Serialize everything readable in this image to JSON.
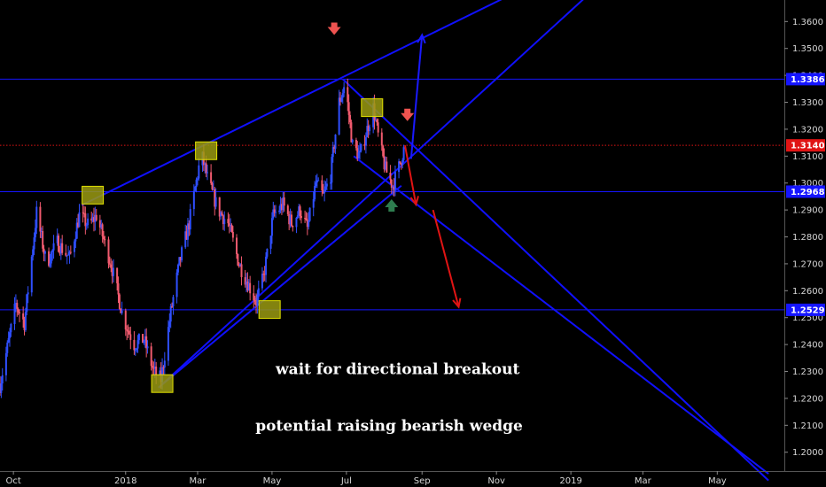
{
  "chart_data": {
    "type": "candlestick",
    "title": "",
    "xlabel": "",
    "ylabel": "",
    "ylim": [
      1.193,
      1.368
    ],
    "x_range": [
      "2017-09-20",
      "2019-06-25"
    ],
    "y_ticks": [
      1.2,
      1.21,
      1.22,
      1.23,
      1.24,
      1.25,
      1.26,
      1.27,
      1.28,
      1.29,
      1.3,
      1.31,
      1.32,
      1.33,
      1.34,
      1.35,
      1.36
    ],
    "y_tick_labels": [
      "1.2000",
      "1.2100",
      "1.2200",
      "1.2300",
      "1.2400",
      "1.2500",
      "1.2600",
      "1.2700",
      "1.2800",
      "1.2900",
      "1.3000",
      "1.3100",
      "1.3200",
      "1.3300",
      "1.3400",
      "1.3500",
      "1.3600"
    ],
    "x_ticks": [
      {
        "label": "Oct",
        "date": "2017-10-01"
      },
      {
        "label": "2018",
        "date": "2018-01-01"
      },
      {
        "label": "Mar",
        "date": "2018-03-01"
      },
      {
        "label": "May",
        "date": "2018-05-01"
      },
      {
        "label": "Jul",
        "date": "2018-07-01"
      },
      {
        "label": "Sep",
        "date": "2018-09-01"
      },
      {
        "label": "Nov",
        "date": "2018-11-01"
      },
      {
        "label": "2019",
        "date": "2019-01-01"
      },
      {
        "label": "Mar",
        "date": "2019-03-01"
      },
      {
        "label": "May",
        "date": "2019-05-01"
      }
    ],
    "price_path": [
      [
        "2017-09-20",
        1.225
      ],
      [
        "2017-10-03",
        1.255
      ],
      [
        "2017-10-10",
        1.248
      ],
      [
        "2017-10-20",
        1.289
      ],
      [
        "2017-10-28",
        1.27
      ],
      [
        "2017-11-06",
        1.278
      ],
      [
        "2017-11-16",
        1.272
      ],
      [
        "2017-11-24",
        1.288
      ],
      [
        "2017-12-02",
        1.284
      ],
      [
        "2017-12-08",
        1.288
      ],
      [
        "2017-12-20",
        1.27
      ],
      [
        "2017-12-30",
        1.25
      ],
      [
        "2018-01-08",
        1.24
      ],
      [
        "2018-01-16",
        1.242
      ],
      [
        "2018-01-24",
        1.23
      ],
      [
        "2018-01-30",
        1.227
      ],
      [
        "2018-02-07",
        1.252
      ],
      [
        "2018-02-14",
        1.27
      ],
      [
        "2018-02-22",
        1.285
      ],
      [
        "2018-03-04",
        1.311
      ],
      [
        "2018-03-10",
        1.3
      ],
      [
        "2018-03-18",
        1.29
      ],
      [
        "2018-03-26",
        1.285
      ],
      [
        "2018-04-04",
        1.27
      ],
      [
        "2018-04-12",
        1.262
      ],
      [
        "2018-04-18",
        1.256
      ],
      [
        "2018-04-24",
        1.265
      ],
      [
        "2018-05-02",
        1.288
      ],
      [
        "2018-05-10",
        1.292
      ],
      [
        "2018-05-17",
        1.285
      ],
      [
        "2018-05-24",
        1.29
      ],
      [
        "2018-05-30",
        1.283
      ],
      [
        "2018-06-06",
        1.3
      ],
      [
        "2018-06-12",
        1.295
      ],
      [
        "2018-06-18",
        1.303
      ],
      [
        "2018-06-25",
        1.33
      ],
      [
        "2018-06-30",
        1.337
      ],
      [
        "2018-07-06",
        1.314
      ],
      [
        "2018-07-12",
        1.31
      ],
      [
        "2018-07-18",
        1.32
      ],
      [
        "2018-07-23",
        1.328
      ],
      [
        "2018-07-28",
        1.315
      ],
      [
        "2018-08-02",
        1.305
      ],
      [
        "2018-08-08",
        1.299
      ],
      [
        "2018-08-13",
        1.306
      ],
      [
        "2018-08-18",
        1.314
      ]
    ],
    "horizontal_levels": [
      {
        "value": 1.3386,
        "label": "1.3386",
        "color": "#1515ff",
        "style": "solid"
      },
      {
        "value": 1.314,
        "label": "1.3140",
        "color": "#e01414",
        "style": "dotted"
      },
      {
        "value": 1.2968,
        "label": "1.2968",
        "color": "#1515ff",
        "style": "solid"
      },
      {
        "value": 1.2529,
        "label": "1.2529",
        "color": "#1515ff",
        "style": "solid"
      }
    ],
    "trend_lines": [
      {
        "from": [
          "2017-11-26",
          1.2918
        ],
        "to": [
          "2018-12-01",
          1.374
        ]
      },
      {
        "from": [
          "2018-01-28",
          1.224
        ],
        "to": [
          "2018-08-15",
          1.299
        ]
      },
      {
        "from": [
          "2018-01-28",
          1.224
        ],
        "to": [
          "2019-01-25",
          1.374
        ]
      },
      {
        "from": [
          "2018-06-28",
          1.3386
        ],
        "to": [
          "2019-06-12",
          1.1895
        ]
      },
      {
        "from": [
          "2018-07-07",
          1.31
        ],
        "to": [
          "2019-06-12",
          1.192
        ]
      }
    ],
    "arrows": [
      {
        "from": [
          "2018-08-23",
          1.309
        ],
        "to": [
          "2018-09-01",
          1.355
        ],
        "color": "#1a1aff"
      },
      {
        "from": [
          "2018-08-18",
          1.314
        ],
        "to": [
          "2018-08-27",
          1.292
        ],
        "color": "#e01414"
      },
      {
        "from": [
          "2018-09-10",
          1.29
        ],
        "to": [
          "2018-10-01",
          1.254
        ],
        "color": "#e01414"
      }
    ],
    "markers": [
      {
        "date": "2017-12-05",
        "value": 1.2955,
        "kind": "pivot-box"
      },
      {
        "date": "2018-03-08",
        "value": 1.312,
        "kind": "pivot-box"
      },
      {
        "date": "2018-01-31",
        "value": 1.2255,
        "kind": "pivot-box"
      },
      {
        "date": "2018-04-29",
        "value": 1.253,
        "kind": "pivot-box"
      },
      {
        "date": "2018-07-22",
        "value": 1.328,
        "kind": "pivot-box"
      },
      {
        "date": "2018-06-21",
        "value": 1.357,
        "kind": "down-arrow",
        "color": "#ef5350"
      },
      {
        "date": "2018-08-20",
        "value": 1.325,
        "kind": "down-arrow",
        "color": "#ef5350"
      },
      {
        "date": "2018-08-07",
        "value": 1.292,
        "kind": "up-arrow",
        "color": "#2e7d4f"
      }
    ],
    "annotations": [
      {
        "text": "wait for directional breakout",
        "date": "2018-08-12",
        "value": 1.229
      },
      {
        "text": "potential raising bearish wedge",
        "date": "2018-08-05",
        "value": 1.208
      }
    ],
    "colors": {
      "background": "#000000",
      "up": "#2f4fff",
      "down": "#f05a6e",
      "line": "#1010ff",
      "box_fill": "#9a9a12",
      "box_stroke": "#e0e000"
    }
  }
}
